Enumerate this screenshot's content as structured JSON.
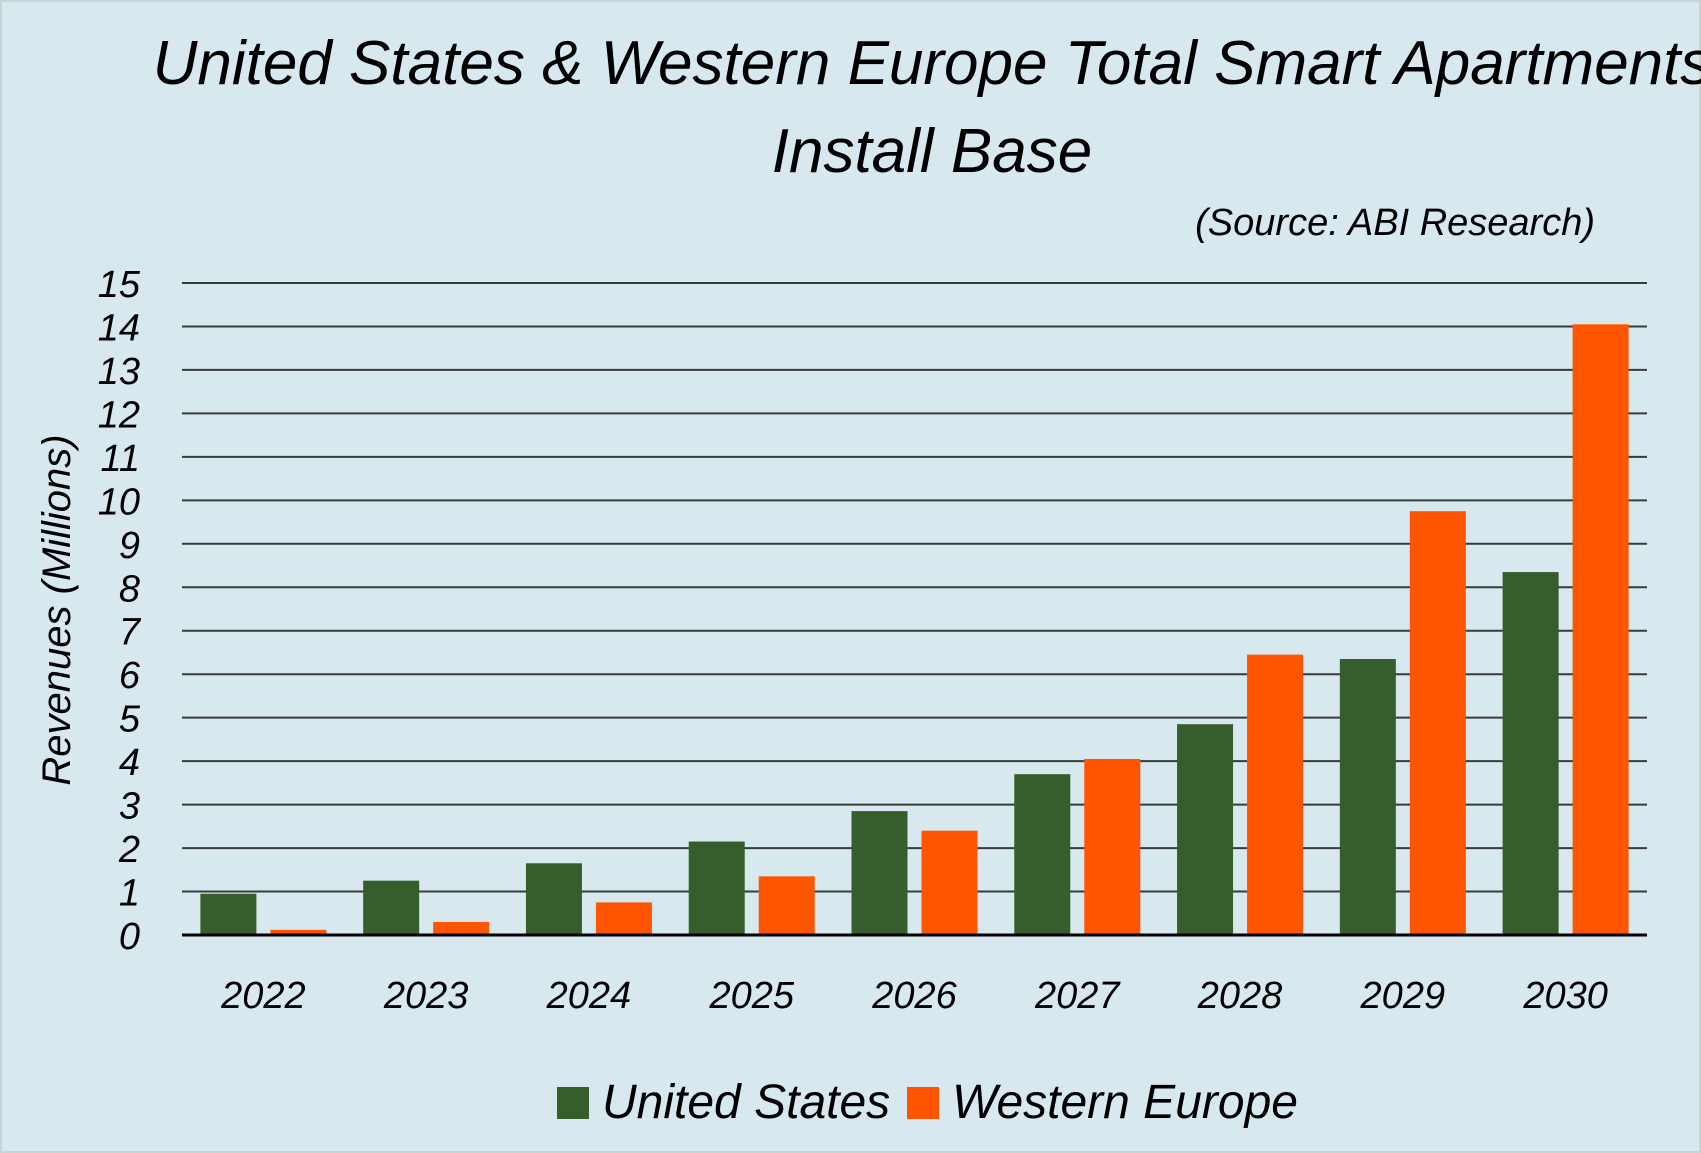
{
  "chart_data": {
    "type": "bar",
    "title_line1": "United States & Western Europe Total Smart Apartments",
    "title_line2": "Install Base",
    "source": "(Source: ABI Research)",
    "ylabel": "Revenues (Millions)",
    "xlabel": "",
    "ylim": [
      0,
      15
    ],
    "yticks": [
      "0",
      "1",
      "2",
      "3",
      "4",
      "5",
      "6",
      "7",
      "8",
      "9",
      "10",
      "11",
      "12",
      "13",
      "14",
      "15"
    ],
    "categories": [
      "2022",
      "2023",
      "2024",
      "2025",
      "2026",
      "2027",
      "2028",
      "2029",
      "2030"
    ],
    "grid": true,
    "legend_position": "bottom-center",
    "series": [
      {
        "name": "United States",
        "color": "#365e2d",
        "values": [
          0.95,
          1.25,
          1.65,
          2.15,
          2.85,
          3.7,
          4.85,
          6.35,
          8.35
        ]
      },
      {
        "name": "Western Europe",
        "color": "#ff5500",
        "values": [
          0.12,
          0.3,
          0.75,
          1.35,
          2.4,
          4.05,
          6.45,
          9.75,
          14.05
        ]
      }
    ]
  }
}
